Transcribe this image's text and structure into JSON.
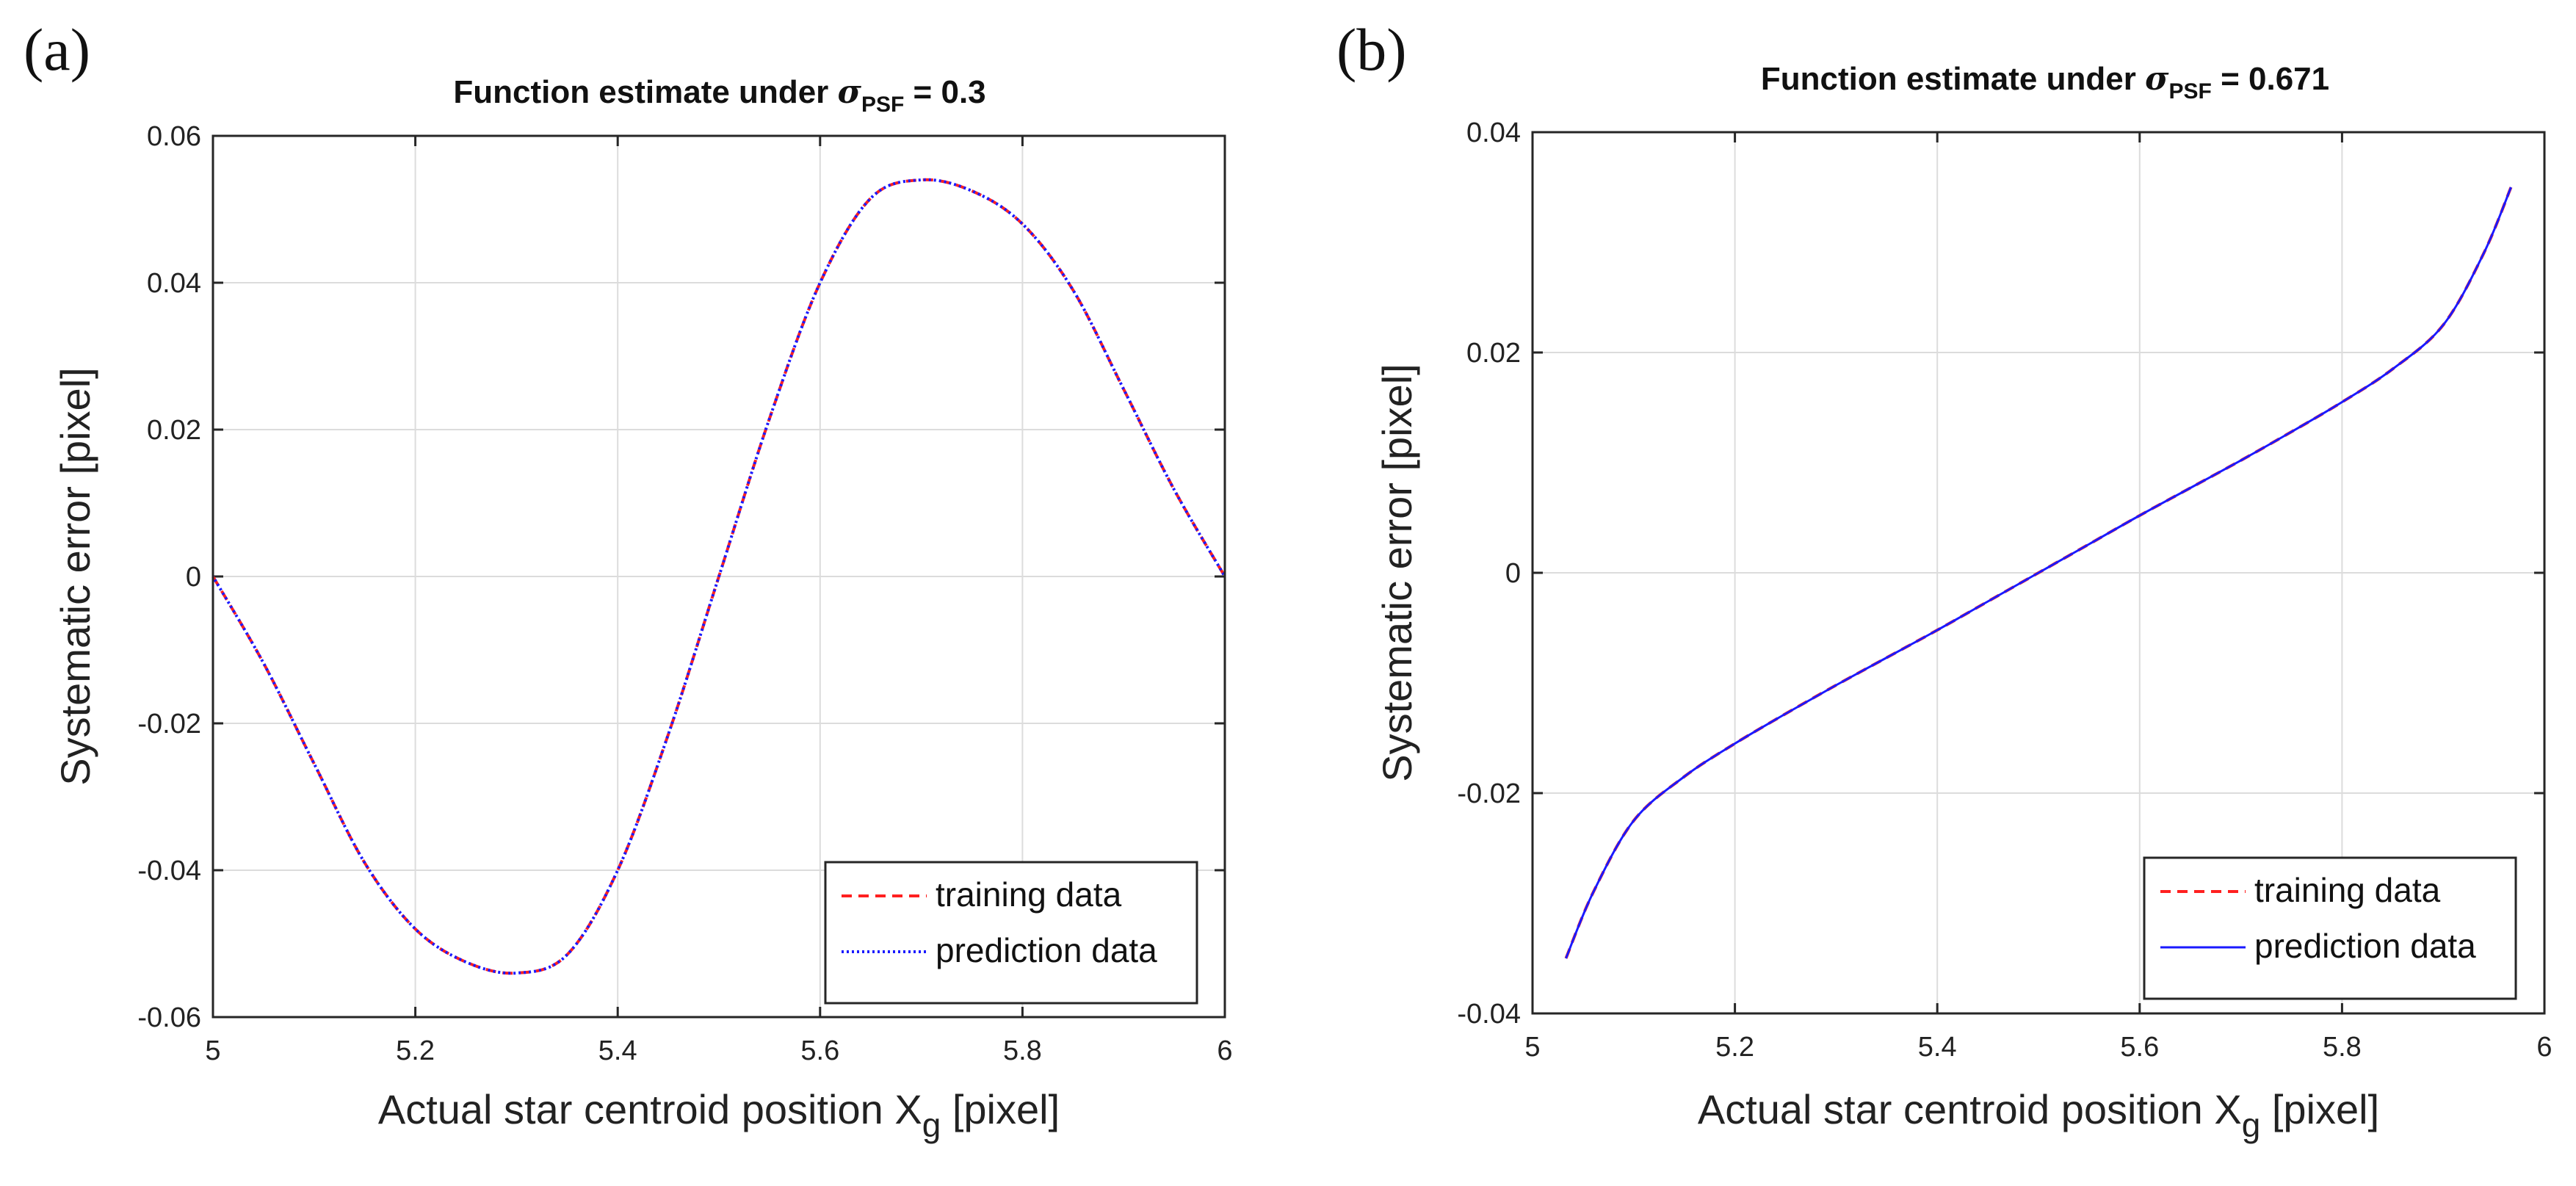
{
  "chart_data": [
    {
      "type": "line",
      "panel_label": "(a)",
      "title": {
        "prefix": "Function estimate under ",
        "sigma": "σ",
        "subscript": "PSF",
        "suffix": " = 0.3"
      },
      "xlabel": {
        "prefix": "Actual star centroid position X",
        "subscript": "g",
        "suffix": " [pixel]"
      },
      "ylabel": "Systematic error [pixel]",
      "xlim": [
        5,
        6
      ],
      "ylim": [
        -0.06,
        0.06
      ],
      "xticks": [
        "5",
        "5.2",
        "5.4",
        "5.6",
        "5.8",
        "6"
      ],
      "yticks": [
        "-0.06",
        "-0.04",
        "-0.02",
        "0",
        "0.02",
        "0.04",
        "0.06"
      ],
      "grid": true,
      "legend_position": "bottom-right",
      "series": [
        {
          "name": "training data",
          "style": "dashed",
          "color": "#ff2020",
          "x": [
            5.0,
            5.05,
            5.1,
            5.15,
            5.2,
            5.25,
            5.3,
            5.35,
            5.4,
            5.45,
            5.5,
            5.55,
            5.6,
            5.65,
            5.7,
            5.75,
            5.8,
            5.85,
            5.9,
            5.95,
            6.0
          ],
          "y": [
            0.0,
            -0.0118,
            -0.0255,
            -0.039,
            -0.048,
            -0.0525,
            -0.054,
            -0.0515,
            -0.04,
            -0.0215,
            0.0,
            0.0215,
            0.04,
            0.0515,
            0.054,
            0.0525,
            0.048,
            0.039,
            0.0255,
            0.0118,
            0.0
          ]
        },
        {
          "name": "prediction data",
          "style": "dotted",
          "color": "#1a1aff",
          "x": [
            5.0,
            5.05,
            5.1,
            5.15,
            5.2,
            5.25,
            5.3,
            5.35,
            5.4,
            5.45,
            5.5,
            5.55,
            5.6,
            5.65,
            5.7,
            5.75,
            5.8,
            5.85,
            5.9,
            5.95,
            6.0
          ],
          "y": [
            0.0,
            -0.0118,
            -0.0255,
            -0.039,
            -0.048,
            -0.0525,
            -0.054,
            -0.0515,
            -0.04,
            -0.0215,
            0.0,
            0.0215,
            0.04,
            0.0515,
            0.054,
            0.0525,
            0.048,
            0.039,
            0.0255,
            0.0118,
            0.0
          ]
        }
      ]
    },
    {
      "type": "line",
      "panel_label": "(b)",
      "title": {
        "prefix": "Function estimate under ",
        "sigma": "σ",
        "subscript": "PSF",
        "suffix": " = 0.671"
      },
      "xlabel": {
        "prefix": "Actual star centroid position X",
        "subscript": "g",
        "suffix": " [pixel]"
      },
      "ylabel": "Systematic error [pixel]",
      "xlim": [
        5,
        6
      ],
      "ylim": [
        -0.04,
        0.04
      ],
      "xticks": [
        "5",
        "5.2",
        "5.4",
        "5.6",
        "5.8",
        "6"
      ],
      "yticks": [
        "-0.04",
        "-0.02",
        "0",
        "0.02",
        "0.04"
      ],
      "grid": true,
      "legend_position": "bottom-right",
      "series": [
        {
          "name": "training data",
          "style": "dashed",
          "color": "#ff2020",
          "x": [
            5.033,
            5.06,
            5.1,
            5.15,
            5.2,
            5.25,
            5.3,
            5.35,
            5.4,
            5.45,
            5.5,
            5.55,
            5.6,
            5.65,
            5.7,
            5.75,
            5.8,
            5.85,
            5.9,
            5.94,
            5.967
          ],
          "y": [
            -0.035,
            -0.029,
            -0.0225,
            -0.0185,
            -0.0155,
            -0.0128,
            -0.0102,
            -0.0077,
            -0.0052,
            -0.0026,
            0.0,
            0.0026,
            0.0052,
            0.0077,
            0.0102,
            0.0128,
            0.0155,
            0.0185,
            0.0225,
            0.029,
            0.035
          ]
        },
        {
          "name": "prediction data",
          "style": "solid-thin",
          "color": "#1a1aff",
          "x": [
            5.033,
            5.06,
            5.1,
            5.15,
            5.2,
            5.25,
            5.3,
            5.35,
            5.4,
            5.45,
            5.5,
            5.55,
            5.6,
            5.65,
            5.7,
            5.75,
            5.8,
            5.85,
            5.9,
            5.94,
            5.967
          ],
          "y": [
            -0.035,
            -0.029,
            -0.0225,
            -0.0185,
            -0.0155,
            -0.0128,
            -0.0102,
            -0.0077,
            -0.0052,
            -0.0026,
            0.0,
            0.0026,
            0.0052,
            0.0077,
            0.0102,
            0.0128,
            0.0155,
            0.0185,
            0.0225,
            0.029,
            0.035
          ]
        }
      ]
    }
  ]
}
